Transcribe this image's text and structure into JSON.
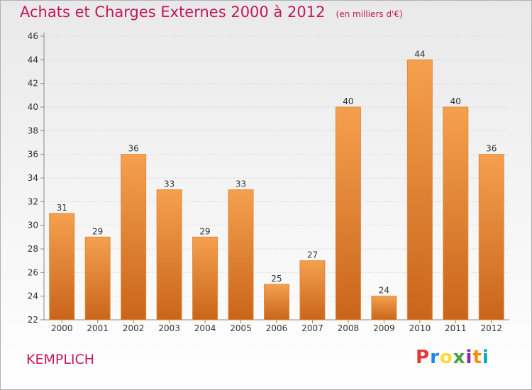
{
  "title": "Achats et Charges Externes 2000 à 2012",
  "subtitle": "(en milliers d'€)",
  "commune": "KEMPLICH",
  "brand": {
    "letters": [
      {
        "char": "P",
        "color": "#e53935"
      },
      {
        "char": "r",
        "color": "#1e88e5"
      },
      {
        "char": "o",
        "color": "#fdd835"
      },
      {
        "char": "x",
        "color": "#43a047"
      },
      {
        "char": "i",
        "color": "#8e24aa"
      },
      {
        "char": "t",
        "color": "#fb8c00"
      },
      {
        "char": "i",
        "color": "#00acc1"
      }
    ]
  },
  "colors": {
    "title": "#c2185b",
    "bar_top": "#f5a04f",
    "bar_bottom": "#c9651a",
    "bar_edge": "#e08a3a"
  },
  "chart_data": {
    "type": "bar",
    "categories": [
      "2000",
      "2001",
      "2002",
      "2003",
      "2004",
      "2005",
      "2006",
      "2007",
      "2008",
      "2009",
      "2010",
      "2011",
      "2012"
    ],
    "values": [
      31,
      29,
      36,
      33,
      29,
      33,
      25,
      27,
      40,
      24,
      44,
      40,
      36
    ],
    "ylim": [
      22,
      46
    ],
    "yticks": [
      22,
      24,
      26,
      28,
      30,
      32,
      34,
      36,
      38,
      40,
      42,
      44,
      46
    ],
    "grid": true,
    "xlabel": "",
    "ylabel": ""
  }
}
